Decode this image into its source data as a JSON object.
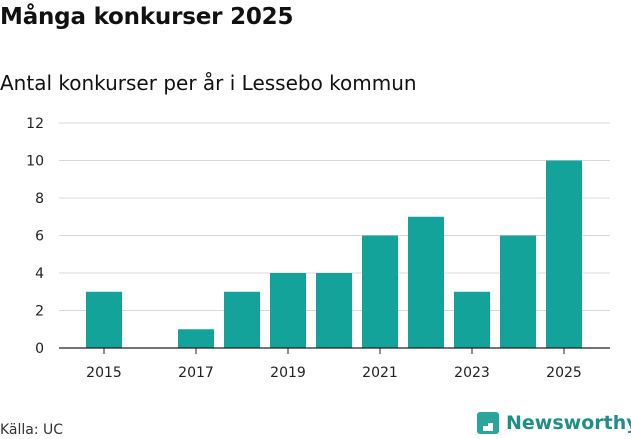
{
  "header": {
    "title": "Många konkurser 2025",
    "subtitle": "Antal konkurser per år i Lessebo kommun"
  },
  "footer": {
    "source": "Källa: UC",
    "brand": "Newsworthy"
  },
  "colors": {
    "bar": "#13a39a",
    "grid": "#d8d8d8",
    "axis": "#222222",
    "brand": "#1f8f86"
  },
  "icons": {
    "brand_icon": "newsworthy-logo-icon"
  },
  "chart_data": {
    "type": "bar",
    "title": "Många konkurser 2025",
    "subtitle": "Antal konkurser per år i Lessebo kommun",
    "xlabel": "",
    "ylabel": "",
    "categories": [
      "2015",
      "2016",
      "2017",
      "2018",
      "2019",
      "2020",
      "2021",
      "2022",
      "2023",
      "2024",
      "2025"
    ],
    "values": [
      3,
      0,
      1,
      3,
      4,
      4,
      6,
      7,
      3,
      6,
      10
    ],
    "x_tick_labels": [
      "2015",
      "2017",
      "2019",
      "2021",
      "2023",
      "2025"
    ],
    "y_ticks": [
      0,
      2,
      4,
      6,
      8,
      10,
      12
    ],
    "ylim": [
      0,
      12
    ],
    "grid": true,
    "legend": "none",
    "source": "Källa: UC"
  }
}
